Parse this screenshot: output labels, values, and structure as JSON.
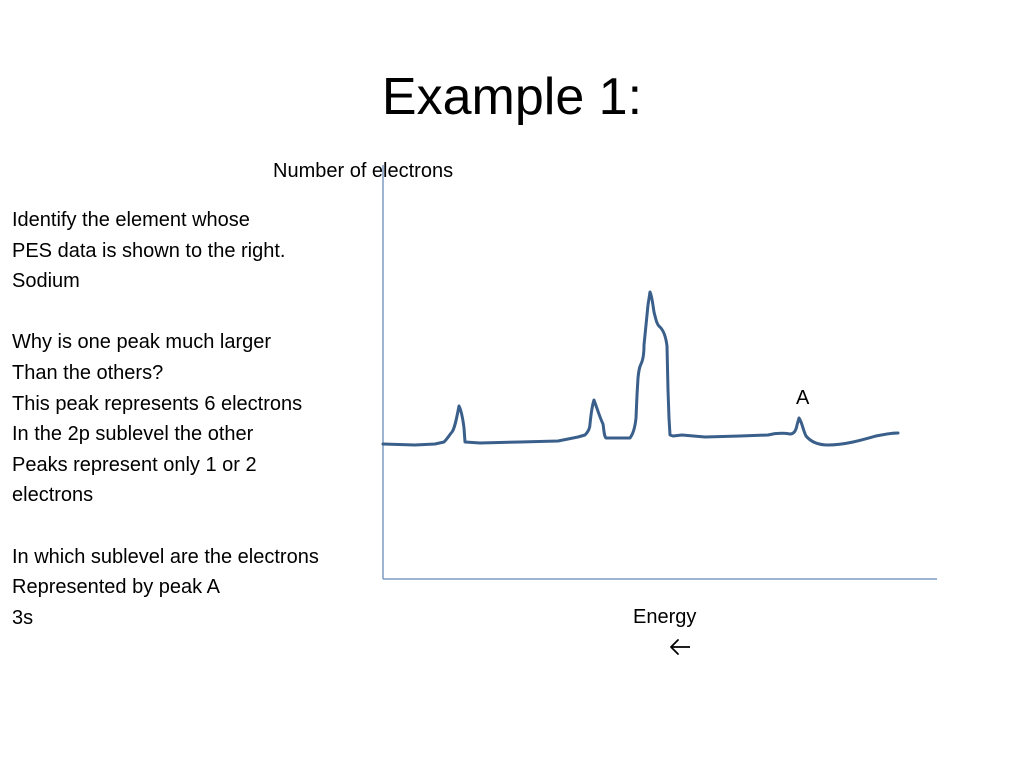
{
  "slide": {
    "title": "Example 1:"
  },
  "questions": {
    "lines": [
      "Identify the element whose",
      "PES data is shown to the right.",
      "Sodium",
      "",
      "Why is one peak much larger",
      "Than the others?",
      "This peak represents 6 electrons",
      "In the 2p sublevel the other",
      "Peaks represent only 1 or 2",
      "electrons",
      "",
      "In which sublevel are the electrons",
      "Represented by peak A",
      "3s"
    ]
  },
  "chart_data": {
    "type": "line",
    "title": "",
    "ylabel": "Number of electrons",
    "xlabel": "Energy",
    "x_direction_arrow": "←",
    "annotations": [
      "A"
    ],
    "line_color": "#3a5f8a",
    "axis_color": "#7d9cc4"
  }
}
